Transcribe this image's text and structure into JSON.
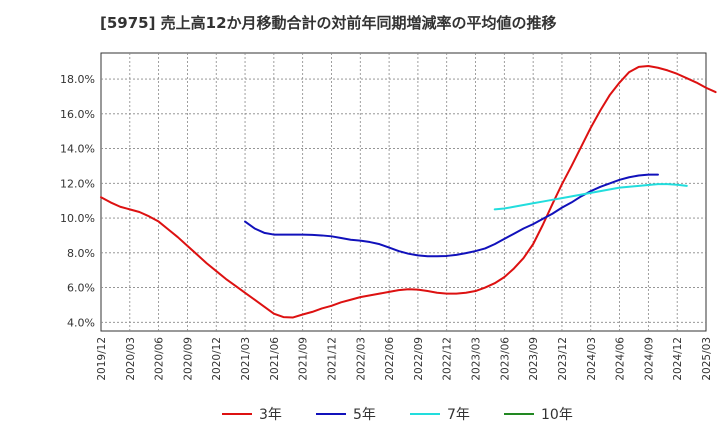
{
  "chart_data": {
    "type": "line",
    "title": "[5975]  売上高12か月移動合計の対前年同期増減率の平均値の推移",
    "xlabel": "",
    "ylabel": "",
    "ylim": [
      3.5,
      19.5
    ],
    "yticks": [
      4,
      6,
      8,
      10,
      12,
      14,
      16,
      18
    ],
    "ytick_labels": [
      "4.0%",
      "6.0%",
      "8.0%",
      "10.0%",
      "12.0%",
      "14.0%",
      "16.0%",
      "18.0%"
    ],
    "x_start": "2019/12",
    "x_tick_labels": [
      "2019/12",
      "2020/03",
      "2020/06",
      "2020/09",
      "2020/12",
      "2021/03",
      "2021/06",
      "2021/09",
      "2021/12",
      "2022/03",
      "2022/06",
      "2022/09",
      "2022/12",
      "2023/03",
      "2023/06",
      "2023/09",
      "2023/12",
      "2024/03",
      "2024/06",
      "2024/09",
      "2024/12",
      "2025/03"
    ],
    "grid": true,
    "legend_position": "bottom",
    "series": [
      {
        "name": "3年",
        "color": "#dd1111",
        "start_index": 0,
        "values": [
          11.2,
          10.9,
          10.65,
          10.5,
          10.35,
          10.1,
          9.8,
          9.35,
          8.9,
          8.4,
          7.9,
          7.4,
          6.95,
          6.5,
          6.1,
          5.7,
          5.3,
          4.9,
          4.5,
          4.3,
          4.28,
          4.45,
          4.6,
          4.8,
          4.95,
          5.15,
          5.3,
          5.45,
          5.55,
          5.65,
          5.75,
          5.85,
          5.9,
          5.88,
          5.8,
          5.7,
          5.65,
          5.65,
          5.7,
          5.8,
          6.0,
          6.25,
          6.6,
          7.1,
          7.7,
          8.5,
          9.6,
          10.8,
          11.95,
          13.0,
          14.1,
          15.2,
          16.2,
          17.1,
          17.8,
          18.4,
          18.7,
          18.75,
          18.65,
          18.5,
          18.3,
          18.05,
          17.8,
          17.5,
          17.25
        ]
      },
      {
        "name": "5年",
        "color": "#1111bb",
        "start_index": 15,
        "values": [
          9.8,
          9.4,
          9.15,
          9.05,
          9.05,
          9.05,
          9.05,
          9.03,
          9.0,
          8.95,
          8.85,
          8.75,
          8.7,
          8.62,
          8.5,
          8.3,
          8.1,
          7.95,
          7.85,
          7.8,
          7.8,
          7.82,
          7.88,
          7.98,
          8.1,
          8.25,
          8.5,
          8.8,
          9.1,
          9.4,
          9.65,
          9.95,
          10.25,
          10.6,
          10.9,
          11.25,
          11.55,
          11.8,
          12.0,
          12.2,
          12.35,
          12.45,
          12.5,
          12.5
        ]
      },
      {
        "name": "7年",
        "color": "#22dddd",
        "start_index": 41,
        "values": [
          10.5,
          10.55,
          10.65,
          10.75,
          10.85,
          10.95,
          11.05,
          11.15,
          11.25,
          11.35,
          11.45,
          11.55,
          11.65,
          11.75,
          11.8,
          11.85,
          11.9,
          11.95,
          11.95,
          11.92,
          11.85
        ]
      },
      {
        "name": "10年",
        "color": "#228822",
        "start_index": 0,
        "values": []
      }
    ]
  }
}
